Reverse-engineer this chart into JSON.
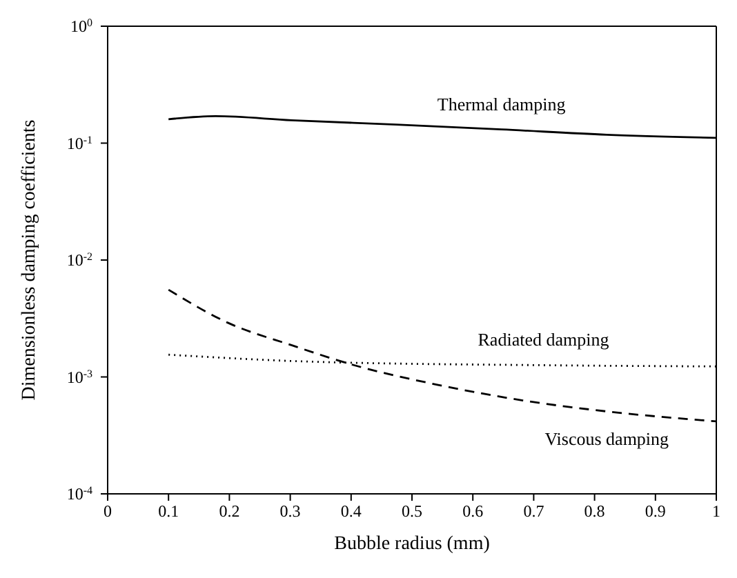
{
  "chart_data": {
    "type": "line",
    "xlabel": "Bubble radius (mm)",
    "ylabel": "Dimensionless damping coefficients",
    "log": "y",
    "xlim": [
      0,
      1
    ],
    "xticks": [
      0,
      0.1,
      0.2,
      0.3,
      0.4,
      0.5,
      0.6,
      0.7,
      0.8,
      0.9,
      1
    ],
    "ylim": [
      0.0001,
      1
    ],
    "yticks": [
      {
        "value": 1,
        "label": "10$^{0}$"
      },
      {
        "value": 0.1,
        "label": "10$^{-1}$"
      },
      {
        "value": 0.01,
        "label": "10$^{-2}$"
      },
      {
        "value": 0.001,
        "label": "10$^{-3}$"
      },
      {
        "value": 0.0001,
        "label": "10$^{-4}$"
      }
    ],
    "marker": "none",
    "series": [
      {
        "name": "Thermal damping",
        "color": "#000000",
        "line_style": "solid",
        "x": [
          0.1,
          0.177,
          0.302,
          0.474,
          0.647,
          0.82,
          1.0
        ],
        "values": [
          0.16,
          0.17,
          0.157,
          0.144,
          0.131,
          0.118,
          0.111
        ]
      },
      {
        "name": "Radiated damping",
        "color": "#000000",
        "line_style": "dotted",
        "x": [
          0.1,
          0.336,
          0.716,
          1.0
        ],
        "values": [
          0.00155,
          0.00135,
          0.00126,
          0.00123
        ]
      },
      {
        "name": "Viscous damping",
        "color": "#000000",
        "line_style": "dashed",
        "x": [
          0.1,
          0.198,
          0.302,
          0.405,
          0.543,
          0.682,
          0.82,
          1.0
        ],
        "values": [
          0.00557,
          0.0029,
          0.00187,
          0.00126,
          0.000855,
          0.00063,
          0.000507,
          0.000417
        ]
      }
    ]
  }
}
